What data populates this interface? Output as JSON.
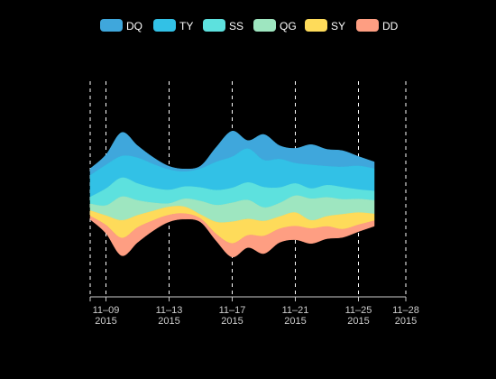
{
  "chart_data": {
    "type": "area",
    "subtype": "streamgraph",
    "title": "",
    "xlabel": "",
    "ylabel": "",
    "x_ticks": [
      {
        "date": "2015-11-08",
        "line1": "",
        "line2": ""
      },
      {
        "date": "2015-11-09",
        "line1": "11–09",
        "line2": "2015"
      },
      {
        "date": "2015-11-13",
        "line1": "11–13",
        "line2": "2015"
      },
      {
        "date": "2015-11-17",
        "line1": "11–17",
        "line2": "2015"
      },
      {
        "date": "2015-11-21",
        "line1": "11–21",
        "line2": "2015"
      },
      {
        "date": "2015-11-25",
        "line1": "11–25",
        "line2": "2015"
      },
      {
        "date": "2015-11-28",
        "line1": "11–28",
        "line2": "2015"
      }
    ],
    "x_range": [
      "2015-11-08",
      "2015-11-28"
    ],
    "grid": "dashed vertical lines at tick dates",
    "legend_position": "top",
    "x": [
      "2015-11-08",
      "2015-11-09",
      "2015-11-10",
      "2015-11-11",
      "2015-11-12",
      "2015-11-13",
      "2015-11-14",
      "2015-11-15",
      "2015-11-16",
      "2015-11-17",
      "2015-11-18",
      "2015-11-19",
      "2015-11-20",
      "2015-11-21",
      "2015-11-22",
      "2015-11-23",
      "2015-11-24",
      "2015-11-25",
      "2015-11-26"
    ],
    "series": [
      {
        "name": "DQ",
        "color": "#3fa7dc",
        "values": [
          10,
          15,
          35,
          18,
          10,
          5,
          4,
          4,
          22,
          38,
          12,
          38,
          20,
          22,
          30,
          25,
          24,
          14,
          10
        ]
      },
      {
        "name": "TY",
        "color": "#32c1e6",
        "values": [
          32,
          35,
          32,
          38,
          35,
          30,
          22,
          28,
          42,
          46,
          50,
          40,
          42,
          30,
          35,
          28,
          30,
          35,
          33
        ]
      },
      {
        "name": "SS",
        "color": "#5de1de",
        "values": [
          10,
          25,
          28,
          25,
          22,
          20,
          18,
          20,
          22,
          22,
          26,
          30,
          23,
          18,
          15,
          18,
          18,
          14,
          14
        ]
      },
      {
        "name": "QG",
        "color": "#9ee6c0",
        "values": [
          10,
          15,
          35,
          22,
          12,
          5,
          12,
          20,
          25,
          28,
          28,
          20,
          20,
          25,
          32,
          28,
          22,
          20,
          20
        ]
      },
      {
        "name": "SY",
        "color": "#fedb5a",
        "values": [
          8,
          14,
          26,
          18,
          14,
          12,
          10,
          6,
          18,
          32,
          24,
          22,
          18,
          20,
          12,
          15,
          22,
          18,
          10
        ]
      },
      {
        "name": "DD",
        "color": "#fe9e82",
        "values": [
          5,
          12,
          26,
          22,
          15,
          10,
          8,
          5,
          10,
          20,
          18,
          26,
          20,
          20,
          22,
          18,
          12,
          10,
          8
        ]
      }
    ]
  }
}
